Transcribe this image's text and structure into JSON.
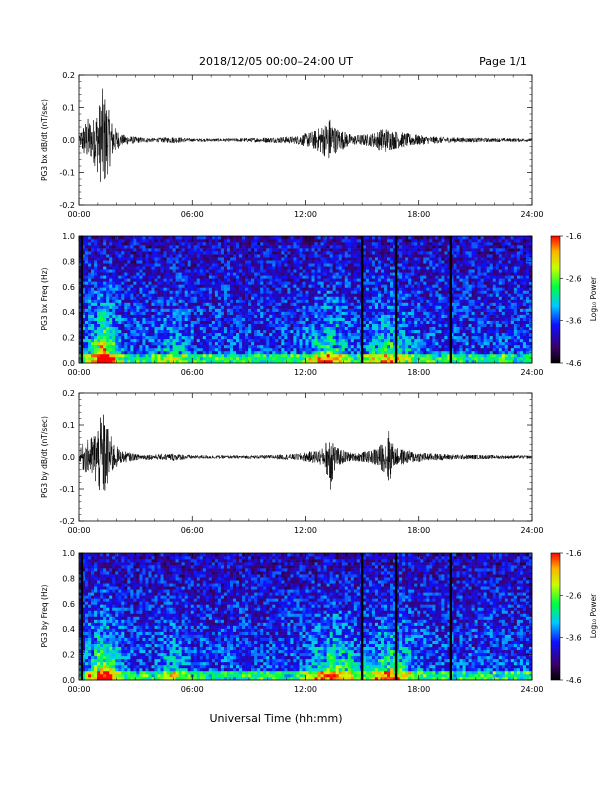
{
  "header": {
    "title": "2018/12/05  00:00–24:00 UT",
    "page": "Page 1/1"
  },
  "footer": {
    "xlabel": "Universal Time (hh:mm)"
  },
  "chart_data": [
    {
      "type": "line",
      "ylabel": "PG3 bx dB/dt (nT/sec)",
      "xlim": [
        0,
        24
      ],
      "ylim": [
        -0.2,
        0.2
      ],
      "xticks": [
        "00:00",
        "06:00",
        "12:00",
        "18:00",
        "24:00"
      ],
      "yticks": [
        "-0.2",
        "-0.1",
        "0.0",
        "0.1",
        "0.2"
      ],
      "envelope": [
        {
          "x": 0.0,
          "y": 0.003
        },
        {
          "x": 0.15,
          "y": 0.04
        },
        {
          "x": 0.3,
          "y": 0.055
        },
        {
          "x": 0.5,
          "y": 0.07
        },
        {
          "x": 0.7,
          "y": 0.06
        },
        {
          "x": 0.9,
          "y": 0.09
        },
        {
          "x": 1.1,
          "y": 0.12
        },
        {
          "x": 1.25,
          "y": 0.16
        },
        {
          "x": 1.4,
          "y": 0.14
        },
        {
          "x": 1.55,
          "y": 0.1
        },
        {
          "x": 1.8,
          "y": 0.05
        },
        {
          "x": 2.2,
          "y": 0.018
        },
        {
          "x": 3.0,
          "y": 0.01
        },
        {
          "x": 4.0,
          "y": 0.006
        },
        {
          "x": 5.0,
          "y": 0.01
        },
        {
          "x": 6.0,
          "y": 0.005
        },
        {
          "x": 8.0,
          "y": 0.005
        },
        {
          "x": 10.0,
          "y": 0.008
        },
        {
          "x": 11.5,
          "y": 0.012
        },
        {
          "x": 12.5,
          "y": 0.03
        },
        {
          "x": 13.0,
          "y": 0.05
        },
        {
          "x": 13.3,
          "y": 0.07
        },
        {
          "x": 13.6,
          "y": 0.04
        },
        {
          "x": 14.5,
          "y": 0.015
        },
        {
          "x": 15.5,
          "y": 0.02
        },
        {
          "x": 16.2,
          "y": 0.04
        },
        {
          "x": 16.6,
          "y": 0.03
        },
        {
          "x": 17.5,
          "y": 0.02
        },
        {
          "x": 18.5,
          "y": 0.012
        },
        {
          "x": 20.0,
          "y": 0.008
        },
        {
          "x": 22.0,
          "y": 0.006
        },
        {
          "x": 24.0,
          "y": 0.005
        }
      ]
    },
    {
      "type": "heatmap",
      "ylabel": "PG3 bx Freq (Hz)",
      "colorbar_label": "Log₁₀ Power",
      "xlim": [
        0,
        24
      ],
      "ylim": [
        0.0,
        1.0
      ],
      "clim": [
        -4.6,
        -1.6
      ],
      "xticks": [
        "00:00",
        "06:00",
        "12:00",
        "18:00",
        "24:00"
      ],
      "yticks": [
        "0.0",
        "0.2",
        "0.4",
        "0.6",
        "0.8",
        "1.0"
      ],
      "cticks": [
        "-1.6",
        "-2.6",
        "-3.6",
        "-4.6"
      ],
      "gaps_hours": [
        0.15,
        15.0,
        16.8,
        19.7
      ],
      "activity": [
        {
          "x": 1.3,
          "width": 1.2,
          "level": -2.2
        },
        {
          "x": 13.2,
          "width": 1.5,
          "level": -3.2
        },
        {
          "x": 16.4,
          "width": 1.8,
          "level": -3.3
        },
        {
          "x": 5.0,
          "width": 1.0,
          "level": -3.8
        }
      ]
    },
    {
      "type": "line",
      "ylabel": "PG3 by dB/dt (nT/sec)",
      "xlim": [
        0,
        24
      ],
      "ylim": [
        -0.2,
        0.2
      ],
      "xticks": [
        "00:00",
        "06:00",
        "12:00",
        "18:00",
        "24:00"
      ],
      "yticks": [
        "-0.2",
        "-0.1",
        "0.0",
        "0.1",
        "0.2"
      ],
      "envelope": [
        {
          "x": 0.0,
          "y": 0.003
        },
        {
          "x": 0.15,
          "y": 0.04
        },
        {
          "x": 0.35,
          "y": 0.05
        },
        {
          "x": 0.6,
          "y": 0.06
        },
        {
          "x": 0.9,
          "y": 0.09
        },
        {
          "x": 1.1,
          "y": 0.12
        },
        {
          "x": 1.3,
          "y": 0.14
        },
        {
          "x": 1.5,
          "y": 0.1
        },
        {
          "x": 1.8,
          "y": 0.05
        },
        {
          "x": 2.2,
          "y": 0.02
        },
        {
          "x": 3.0,
          "y": 0.01
        },
        {
          "x": 4.0,
          "y": 0.008
        },
        {
          "x": 5.0,
          "y": 0.012
        },
        {
          "x": 6.0,
          "y": 0.006
        },
        {
          "x": 8.0,
          "y": 0.005
        },
        {
          "x": 10.0,
          "y": 0.006
        },
        {
          "x": 11.5,
          "y": 0.01
        },
        {
          "x": 12.5,
          "y": 0.02
        },
        {
          "x": 13.0,
          "y": 0.03
        },
        {
          "x": 13.35,
          "y": 0.11
        },
        {
          "x": 13.6,
          "y": 0.03
        },
        {
          "x": 14.5,
          "y": 0.012
        },
        {
          "x": 15.5,
          "y": 0.02
        },
        {
          "x": 16.2,
          "y": 0.05
        },
        {
          "x": 16.4,
          "y": 0.09
        },
        {
          "x": 16.7,
          "y": 0.03
        },
        {
          "x": 17.5,
          "y": 0.02
        },
        {
          "x": 18.5,
          "y": 0.012
        },
        {
          "x": 20.0,
          "y": 0.008
        },
        {
          "x": 22.0,
          "y": 0.006
        },
        {
          "x": 24.0,
          "y": 0.005
        }
      ]
    },
    {
      "type": "heatmap",
      "ylabel": "PG3 by Freq (Hz)",
      "colorbar_label": "Log₁₀ Power",
      "xlim": [
        0,
        24
      ],
      "ylim": [
        0.0,
        1.0
      ],
      "clim": [
        -4.6,
        -1.6
      ],
      "xticks": [
        "00:00",
        "06:00",
        "12:00",
        "18:00",
        "24:00"
      ],
      "yticks": [
        "0.0",
        "0.2",
        "0.4",
        "0.6",
        "0.8",
        "1.0"
      ],
      "cticks": [
        "-1.6",
        "-2.6",
        "-3.6",
        "-4.6"
      ],
      "gaps_hours": [
        0.15,
        15.0,
        16.8,
        19.7
      ],
      "activity": [
        {
          "x": 1.3,
          "width": 1.2,
          "level": -2.3
        },
        {
          "x": 13.5,
          "width": 2.0,
          "level": -3.1
        },
        {
          "x": 16.5,
          "width": 2.0,
          "level": -3.2
        },
        {
          "x": 5.0,
          "width": 1.0,
          "level": -3.7
        }
      ]
    }
  ]
}
